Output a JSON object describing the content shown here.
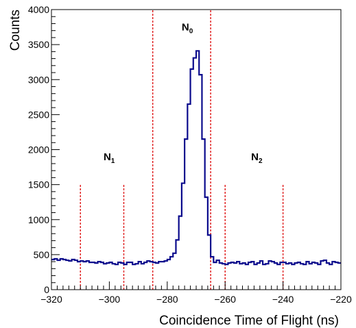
{
  "chart_data": {
    "type": "line",
    "style": "histogram-step",
    "title": "",
    "xlabel": "Coincidence Time of Flight  (ns)",
    "ylabel": "Counts",
    "xlim": [
      -320,
      -220
    ],
    "ylim": [
      0,
      4000
    ],
    "x_ticks": [
      -320,
      -300,
      -280,
      -260,
      -240,
      -220
    ],
    "x_tick_labels": [
      "−320",
      "−300",
      "−280",
      "−260",
      "−240",
      "−220"
    ],
    "y_ticks": [
      0,
      500,
      1000,
      1500,
      2000,
      2500,
      3000,
      3500,
      4000
    ],
    "y_tick_labels": [
      "0",
      "500",
      "1000",
      "1500",
      "2000",
      "2500",
      "3000",
      "3500",
      "4000"
    ],
    "bin_start": -320,
    "bin_width": 1,
    "values": [
      430,
      440,
      420,
      440,
      430,
      420,
      410,
      430,
      420,
      400,
      410,
      400,
      410,
      390,
      390,
      380,
      400,
      390,
      370,
      380,
      390,
      370,
      360,
      390,
      380,
      360,
      390,
      390,
      360,
      370,
      400,
      370,
      390,
      410,
      400,
      390,
      380,
      400,
      400,
      410,
      430,
      470,
      520,
      710,
      1050,
      1520,
      2150,
      2650,
      3150,
      3310,
      3410,
      3070,
      2150,
      1320,
      780,
      470,
      390,
      420,
      380,
      370,
      360,
      380,
      390,
      380,
      400,
      370,
      380,
      360,
      390,
      400,
      360,
      380,
      410,
      360,
      370,
      410,
      400,
      380,
      360,
      390,
      390,
      370,
      380,
      360,
      380,
      390,
      370,
      360,
      400,
      370,
      390,
      380,
      360,
      410,
      420,
      380,
      360,
      400,
      390,
      380
    ],
    "color": "#0a0a8c",
    "markers": [
      {
        "x": -310,
        "y_top": 1500,
        "color": "#dd0000"
      },
      {
        "x": -295,
        "y_top": 1500,
        "color": "#dd0000"
      },
      {
        "x": -285,
        "y_top": 4000,
        "color": "#dd0000"
      },
      {
        "x": -265,
        "y_top": 4000,
        "color": "#dd0000"
      },
      {
        "x": -260,
        "y_top": 1500,
        "color": "#dd0000"
      },
      {
        "x": -240,
        "y_top": 1500,
        "color": "#dd0000"
      }
    ],
    "annotations": [
      {
        "label": "N",
        "sub": "1",
        "x": -302,
        "y": 1850
      },
      {
        "label": "N",
        "sub": "0",
        "x": -275,
        "y": 3700
      },
      {
        "label": "N",
        "sub": "2",
        "x": -251,
        "y": 1850
      }
    ]
  }
}
